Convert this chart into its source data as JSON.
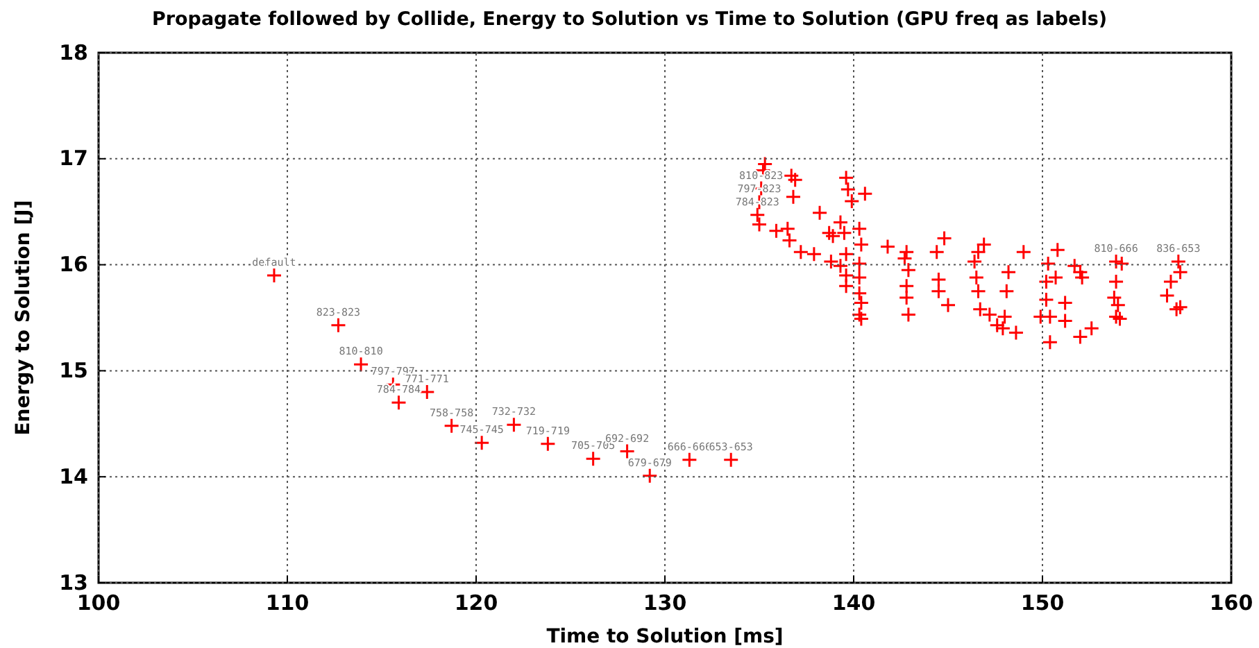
{
  "chart_data": {
    "type": "scatter",
    "title": "Propagate followed by Collide, Energy to Solution vs Time to Solution (GPU freq as labels)",
    "xlabel": "Time to Solution [ms]",
    "ylabel": "Energy to Solution [J]",
    "xlim": [
      100,
      160
    ],
    "xticks": [
      100,
      110,
      120,
      130,
      140,
      150,
      160
    ],
    "ylim": [
      13,
      18
    ],
    "yticks": [
      13,
      14,
      15,
      16,
      17,
      18
    ],
    "grid": true,
    "marker": "cross",
    "x": [
      109.3,
      112.7,
      113.9,
      115.6,
      115.9,
      117.4,
      118.7,
      120.3,
      122.0,
      123.8,
      126.2,
      128.0,
      129.2,
      131.3,
      133.5,
      135.3,
      135.2,
      136.7,
      136.9,
      135.1,
      136.8,
      135.0,
      134.9,
      135.0,
      135.9,
      136.5,
      136.6,
      137.2,
      137.9,
      138.8,
      138.9,
      139.6,
      139.7,
      139.9,
      140.6,
      139.3,
      139.5,
      140.3,
      140.4,
      139.6,
      140.3,
      139.6,
      140.3,
      139.6,
      140.3,
      140.4,
      140.3,
      140.4,
      141.8,
      142.8,
      142.7,
      142.9,
      142.8,
      142.8,
      142.9,
      144.4,
      144.8,
      144.5,
      144.5,
      145.0,
      146.4,
      146.9,
      146.5,
      146.6,
      146.7,
      147.2,
      147.6,
      147.9,
      148.2,
      148.6,
      148.1,
      149.0,
      150.3,
      150.8,
      150.2,
      150.7,
      150.2,
      151.2,
      150.4,
      150.4,
      151.2,
      152.0,
      152.6,
      152.1,
      152.0,
      153.9,
      154.2,
      153.9,
      153.8,
      153.9,
      154.1,
      156.8,
      157.2,
      157.3,
      156.6,
      157.1,
      157.3,
      138.2,
      138.7,
      139.3,
      146.6,
      148.0,
      149.9,
      151.7,
      154.0
    ],
    "series": [
      {
        "color": "#ff0000",
        "values": [
          15.9,
          15.43,
          15.06,
          14.87,
          14.7,
          14.8,
          14.48,
          14.32,
          14.49,
          14.31,
          14.17,
          14.24,
          14.01,
          14.16,
          14.16,
          16.95,
          16.89,
          16.84,
          16.8,
          16.72,
          16.64,
          16.59,
          16.47,
          16.38,
          16.32,
          16.34,
          16.23,
          16.12,
          16.1,
          16.03,
          16.27,
          16.82,
          16.71,
          16.6,
          16.67,
          16.4,
          16.3,
          16.34,
          16.19,
          16.1,
          16.01,
          15.9,
          15.88,
          15.8,
          15.73,
          15.64,
          15.53,
          15.49,
          16.17,
          16.12,
          16.06,
          15.95,
          15.8,
          15.69,
          15.53,
          16.12,
          16.25,
          15.86,
          15.75,
          15.62,
          16.03,
          16.19,
          15.88,
          15.75,
          15.58,
          15.53,
          15.43,
          15.4,
          15.93,
          15.36,
          15.75,
          16.12,
          16.01,
          16.14,
          15.84,
          15.88,
          15.67,
          15.64,
          15.51,
          15.27,
          15.47,
          15.32,
          15.4,
          15.88,
          15.93,
          16.03,
          16.01,
          15.84,
          15.69,
          15.51,
          15.49,
          15.84,
          16.03,
          15.93,
          15.71,
          15.58,
          15.6,
          16.49,
          16.3,
          15.99,
          16.12,
          15.51,
          15.51,
          15.99,
          15.62
        ],
        "value_labels": [
          "default",
          "823-823",
          "810-810",
          "797-797",
          "784-784",
          "771-771",
          "758-758",
          "745-745",
          "732-732",
          "719-719",
          "705-705",
          "692-692",
          "679-679",
          "666-666",
          "653-653",
          null,
          null,
          null,
          null,
          "810-823",
          null,
          "797-823",
          "784-823",
          null,
          null,
          null,
          null,
          null,
          null,
          null,
          null,
          null,
          null,
          null,
          null,
          null,
          null,
          null,
          null,
          null,
          null,
          null,
          null,
          null,
          null,
          null,
          null,
          null,
          null,
          null,
          null,
          null,
          null,
          null,
          null,
          null,
          null,
          null,
          null,
          null,
          null,
          null,
          null,
          null,
          null,
          null,
          null,
          null,
          null,
          null,
          null,
          null,
          null,
          null,
          null,
          null,
          null,
          null,
          null,
          null,
          null,
          null,
          null,
          null,
          null,
          "810-666",
          null,
          null,
          null,
          null,
          null,
          null,
          "836-653",
          null,
          null,
          null,
          null,
          null,
          null,
          null,
          null,
          null,
          null,
          null,
          null
        ]
      }
    ]
  }
}
